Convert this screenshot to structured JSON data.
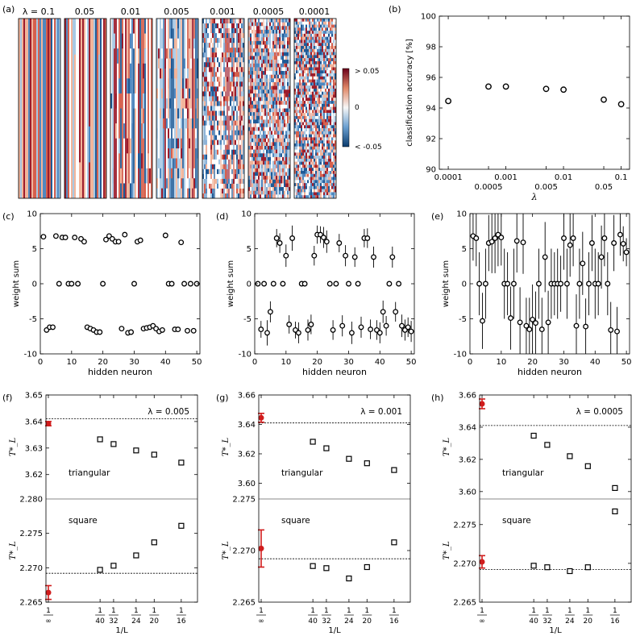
{
  "figure": {
    "panel_labels": [
      "(a)",
      "(b)",
      "(c)",
      "(d)",
      "(e)",
      "(f)",
      "(g)",
      "(h)"
    ]
  },
  "chart_data": [
    {
      "id": "a",
      "type": "heatmap",
      "panel": "(a)",
      "lambda_labels": [
        "λ = 0.1",
        "0.05",
        "0.01",
        "0.005",
        "0.001",
        "0.0005",
        "0.0001"
      ],
      "colorbar": {
        "ticks": [
          "> 0.05",
          "0",
          "< -0.05"
        ],
        "range": [
          -0.05,
          0.05
        ]
      },
      "noise_level": [
        0.0,
        0.02,
        0.15,
        0.25,
        0.6,
        0.8,
        1.0
      ]
    },
    {
      "id": "b",
      "type": "scatter",
      "panel": "(b)",
      "xlabel": "λ",
      "ylabel": "classification accuracy [%]",
      "xscale": "log",
      "xlim": [
        7e-05,
        0.14
      ],
      "ylim": [
        90,
        100
      ],
      "yticks": [
        90,
        92,
        94,
        96,
        98,
        100
      ],
      "xticks_top": [
        {
          "v": 0.0001,
          "label": "0.0001"
        },
        {
          "v": 0.001,
          "label": "0.001"
        },
        {
          "v": 0.01,
          "label": "0.01"
        },
        {
          "v": 0.1,
          "label": "0.1"
        }
      ],
      "xticks_bottom": [
        {
          "v": 0.0005,
          "label": "0.0005"
        },
        {
          "v": 0.005,
          "label": "0.005"
        },
        {
          "v": 0.05,
          "label": "0.05"
        }
      ],
      "x": [
        0.0001,
        0.0005,
        0.001,
        0.005,
        0.01,
        0.05,
        0.1
      ],
      "y": [
        94.45,
        95.4,
        95.4,
        95.25,
        95.2,
        94.55,
        94.25
      ]
    },
    {
      "id": "c",
      "type": "scatter",
      "panel": "(c)",
      "xlabel": "hidden neuron",
      "ylabel": "weight sum",
      "xlim": [
        0,
        51
      ],
      "ylim": [
        -10,
        10
      ],
      "xticks": [
        0,
        10,
        20,
        30,
        40,
        50
      ],
      "yticks": [
        -10,
        -5,
        0,
        5,
        10
      ],
      "y": [
        6.7,
        -6.6,
        -6.2,
        -6.2,
        6.8,
        0,
        6.6,
        6.6,
        0,
        0,
        6.6,
        0,
        6.4,
        6.0,
        -6.2,
        -6.4,
        -6.6,
        -6.9,
        -6.9,
        0,
        6.3,
        6.8,
        6.4,
        6.0,
        6.0,
        -6.4,
        7.0,
        -7.0,
        -6.9,
        0,
        6.0,
        6.2,
        -6.4,
        -6.3,
        -6.2,
        -6.0,
        -6.4,
        -6.8,
        -6.6,
        6.9,
        0,
        0,
        -6.5,
        -6.5,
        5.9,
        0,
        -6.7,
        0,
        -6.7,
        0
      ],
      "err": []
    },
    {
      "id": "d",
      "type": "scatter",
      "panel": "(d)",
      "xlabel": "hidden neuron",
      "ylabel": "weight sum",
      "xlim": [
        0,
        51
      ],
      "ylim": [
        -10,
        10
      ],
      "xticks": [
        0,
        10,
        20,
        30,
        40,
        50
      ],
      "yticks": [
        -10,
        -5,
        0,
        5,
        10
      ],
      "y": [
        0,
        -6.5,
        0,
        -7.0,
        -4.0,
        0,
        6.5,
        5.8,
        0,
        4.0,
        -5.8,
        6.5,
        -6.6,
        -7.0,
        0,
        0,
        -6.6,
        -5.8,
        4.0,
        7.0,
        7.0,
        6.6,
        6.0,
        0,
        -6.6,
        0,
        5.8,
        -6.0,
        4.0,
        0,
        -7.0,
        3.8,
        0,
        -6.2,
        6.5,
        6.5,
        -6.5,
        3.8,
        -6.6,
        -7.0,
        -4.0,
        -6.0,
        0,
        3.8,
        -4.0,
        0,
        -6.0,
        -6.6,
        -6.2,
        -6.8
      ],
      "err": [
        0,
        1.2,
        0,
        1.8,
        1.5,
        0,
        1.3,
        1.4,
        0,
        1.6,
        1.3,
        1.8,
        1.2,
        1.5,
        0,
        0,
        1.5,
        1.4,
        1.4,
        1.3,
        1.2,
        1.5,
        1.6,
        0,
        1.4,
        0,
        1.3,
        1.5,
        1.5,
        0,
        1.6,
        1.4,
        0,
        1.5,
        1.3,
        1.4,
        1.4,
        1.5,
        1.4,
        1.5,
        1.6,
        1.4,
        0,
        1.5,
        1.4,
        0,
        1.6,
        1.5,
        1.4,
        1.5
      ]
    },
    {
      "id": "e",
      "type": "scatter",
      "panel": "(e)",
      "xlabel": "hidden neuron",
      "ylabel": "weight sum",
      "xlim": [
        0,
        51
      ],
      "ylim": [
        -10,
        10
      ],
      "xticks": [
        0,
        10,
        20,
        30,
        40,
        50
      ],
      "yticks": [
        -10,
        -5,
        0,
        5,
        10
      ],
      "y": [
        6.8,
        6.5,
        0,
        -5.3,
        0,
        5.8,
        6.0,
        6.5,
        7.0,
        6.6,
        0,
        0,
        -4.9,
        0,
        6.1,
        -5.5,
        5.9,
        -6.0,
        -6.5,
        -5.1,
        -5.6,
        0,
        -6.5,
        3.8,
        -5.5,
        0,
        0,
        0,
        0,
        6.5,
        0,
        5.5,
        6.5,
        -6.0,
        0,
        2.9,
        -6.1,
        0,
        5.8,
        0,
        0,
        3.8,
        6.5,
        0,
        -6.6,
        5.8,
        -6.8,
        7.0,
        5.7,
        4.5
      ],
      "err": [
        3.5,
        4.0,
        4.5,
        4.0,
        5.0,
        4.0,
        4.5,
        5.0,
        4.5,
        4.0,
        5.0,
        4.5,
        4.5,
        5.0,
        4.5,
        5.0,
        4.5,
        4.0,
        4.5,
        5.0,
        4.5,
        5.0,
        4.5,
        5.0,
        4.5,
        5.0,
        4.5,
        5.0,
        4.0,
        4.5,
        5.0,
        4.5,
        4.0,
        4.5,
        5.0,
        4.5,
        4.0,
        4.5,
        4.0,
        5.0,
        4.5,
        4.5,
        4.0,
        4.5,
        4.0,
        4.0,
        3.5,
        3.0,
        2.5,
        2.0
      ]
    },
    {
      "id": "f",
      "type": "scatter",
      "panel": "(f)",
      "lambda_label": "λ = 0.005",
      "xlabel": "1/L",
      "ylabel": "T*_L",
      "xlim": [
        0,
        0.07
      ],
      "xtick_denoms": [
        "∞",
        "40",
        "32",
        "24",
        "20",
        "16"
      ],
      "xtick_values": [
        0,
        0.025,
        0.03125,
        0.041667,
        0.05,
        0.0625
      ],
      "upper": {
        "label": "triangular",
        "ylim": [
          3.6108,
          3.65
        ],
        "yticks": [
          3.62,
          3.63,
          3.64,
          3.65
        ],
        "ref": 3.641,
        "x": [
          0.025,
          0.03125,
          0.041667,
          0.05,
          0.0625
        ],
        "y": [
          3.6333,
          3.6315,
          3.6291,
          3.6275,
          3.6245
        ],
        "red": {
          "x": 0,
          "y": 3.6392,
          "err": 0.0008
        }
      },
      "lower": {
        "label": "square",
        "ylim": [
          2.265,
          2.28
        ],
        "yticks": [
          2.265,
          2.27,
          2.275,
          2.28
        ],
        "ref": 2.2692,
        "x": [
          0.025,
          0.03125,
          0.041667,
          0.05,
          0.0625
        ],
        "y": [
          2.2697,
          2.2703,
          2.2718,
          2.2737,
          2.2761
        ],
        "red": {
          "x": 0,
          "y": 2.2664,
          "err": 0.001
        }
      }
    },
    {
      "id": "g",
      "type": "scatter",
      "panel": "(g)",
      "lambda_label": "λ = 0.001",
      "xlabel": "1/L",
      "ylabel": "T*_L",
      "xlim": [
        0,
        0.07
      ],
      "xtick_denoms": [
        "∞",
        "40",
        "32",
        "24",
        "20",
        "16"
      ],
      "xtick_values": [
        0,
        0.025,
        0.03125,
        0.041667,
        0.05,
        0.0625
      ],
      "upper": {
        "label": "triangular",
        "ylim": [
          3.5893,
          3.66
        ],
        "yticks": [
          3.6,
          3.62,
          3.64,
          3.66
        ],
        "ref": 3.641,
        "x": [
          0.025,
          0.03125,
          0.041667,
          0.05,
          0.0625
        ],
        "y": [
          3.6282,
          3.6238,
          3.6166,
          3.6136,
          3.609
        ],
        "red": {
          "x": 0,
          "y": 3.6445,
          "err": 0.003
        }
      },
      "lower": {
        "label": "square",
        "ylim": [
          2.265,
          2.275
        ],
        "yticks": [
          2.265,
          2.27,
          2.275
        ],
        "ref": 2.2692,
        "x": [
          0.025,
          0.03125,
          0.041667,
          0.05,
          0.0625
        ],
        "y": [
          2.2685,
          2.2683,
          2.2673,
          2.2684,
          2.2708
        ],
        "red": {
          "x": 0,
          "y": 2.2702,
          "err": 0.0018
        }
      }
    },
    {
      "id": "h",
      "type": "scatter",
      "panel": "(h)",
      "lambda_label": "λ = 0.0005",
      "xlabel": "1/L",
      "ylabel": "T*_L",
      "xlim": [
        0,
        0.07
      ],
      "xtick_denoms": [
        "∞",
        "40",
        "32",
        "24",
        "20",
        "16"
      ],
      "xtick_values": [
        0,
        0.025,
        0.03125,
        0.041667,
        0.05,
        0.0625
      ],
      "upper": {
        "label": "triangular",
        "ylim": [
          3.5954,
          3.66
        ],
        "yticks": [
          3.6,
          3.62,
          3.64,
          3.66
        ],
        "ref": 3.641,
        "x": [
          0.025,
          0.03125,
          0.041667,
          0.05,
          0.0625
        ],
        "y": [
          3.6347,
          3.629,
          3.622,
          3.6158,
          3.6022
        ],
        "red": {
          "x": 0,
          "y": 3.6545,
          "err": 0.003
        }
      },
      "lower": {
        "label": "square",
        "ylim": [
          2.265,
          2.2783
        ],
        "yticks": [
          2.265,
          2.27,
          2.275
        ],
        "ref": 2.2692,
        "x": [
          0.025,
          0.03125,
          0.041667,
          0.05,
          0.0625
        ],
        "y": [
          2.2697,
          2.2695,
          2.269,
          2.2695,
          2.2767
        ],
        "red": {
          "x": 0,
          "y": 2.2702,
          "err": 0.0008
        }
      }
    }
  ]
}
